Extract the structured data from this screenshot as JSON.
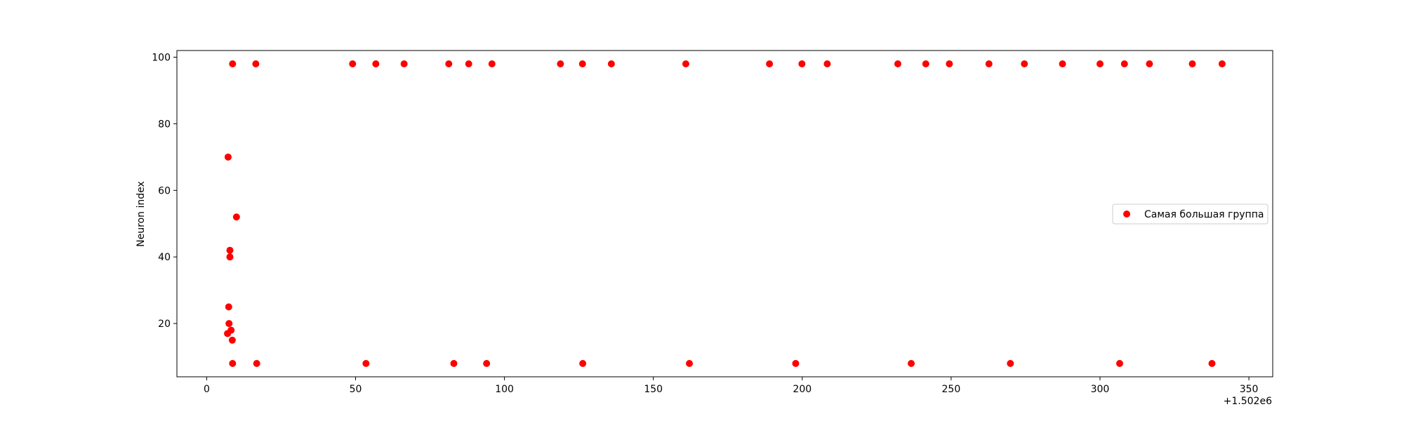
{
  "chart_data": {
    "type": "scatter",
    "title": "",
    "xlabel": "",
    "ylabel": "Neuron index",
    "x_offset_label": "+1.502e6",
    "xlim": [
      -10,
      358
    ],
    "ylim": [
      4,
      102
    ],
    "xticks": [
      0,
      50,
      100,
      150,
      200,
      250,
      300,
      350
    ],
    "yticks": [
      20,
      40,
      60,
      80,
      100
    ],
    "grid": false,
    "legend_position": "center-right",
    "series": [
      {
        "name": "Самая большая группа",
        "color": "#ff0000",
        "points": [
          {
            "x": 7.0,
            "y": 17
          },
          {
            "x": 7.2,
            "y": 70
          },
          {
            "x": 7.4,
            "y": 25
          },
          {
            "x": 7.5,
            "y": 20
          },
          {
            "x": 7.8,
            "y": 42
          },
          {
            "x": 7.8,
            "y": 40
          },
          {
            "x": 8.2,
            "y": 18
          },
          {
            "x": 8.6,
            "y": 15
          },
          {
            "x": 8.7,
            "y": 8
          },
          {
            "x": 8.7,
            "y": 98
          },
          {
            "x": 10.0,
            "y": 52
          },
          {
            "x": 16.5,
            "y": 98
          },
          {
            "x": 16.8,
            "y": 8
          },
          {
            "x": 49.0,
            "y": 98
          },
          {
            "x": 53.5,
            "y": 8
          },
          {
            "x": 56.8,
            "y": 98
          },
          {
            "x": 66.3,
            "y": 98
          },
          {
            "x": 81.3,
            "y": 98
          },
          {
            "x": 83.0,
            "y": 8
          },
          {
            "x": 88.0,
            "y": 98
          },
          {
            "x": 94.0,
            "y": 8
          },
          {
            "x": 95.8,
            "y": 98
          },
          {
            "x": 118.8,
            "y": 98
          },
          {
            "x": 126.2,
            "y": 98
          },
          {
            "x": 126.3,
            "y": 8
          },
          {
            "x": 135.9,
            "y": 98
          },
          {
            "x": 160.9,
            "y": 98
          },
          {
            "x": 162.1,
            "y": 8
          },
          {
            "x": 189.0,
            "y": 98
          },
          {
            "x": 197.8,
            "y": 8
          },
          {
            "x": 199.9,
            "y": 98
          },
          {
            "x": 208.4,
            "y": 98
          },
          {
            "x": 232.1,
            "y": 98
          },
          {
            "x": 236.6,
            "y": 8
          },
          {
            "x": 241.5,
            "y": 98
          },
          {
            "x": 249.4,
            "y": 98
          },
          {
            "x": 262.7,
            "y": 98
          },
          {
            "x": 269.9,
            "y": 8
          },
          {
            "x": 274.6,
            "y": 98
          },
          {
            "x": 287.4,
            "y": 98
          },
          {
            "x": 300.0,
            "y": 98
          },
          {
            "x": 306.6,
            "y": 8
          },
          {
            "x": 308.2,
            "y": 98
          },
          {
            "x": 316.6,
            "y": 98
          },
          {
            "x": 331.0,
            "y": 98
          },
          {
            "x": 337.6,
            "y": 8
          },
          {
            "x": 341.0,
            "y": 98
          }
        ]
      }
    ]
  }
}
